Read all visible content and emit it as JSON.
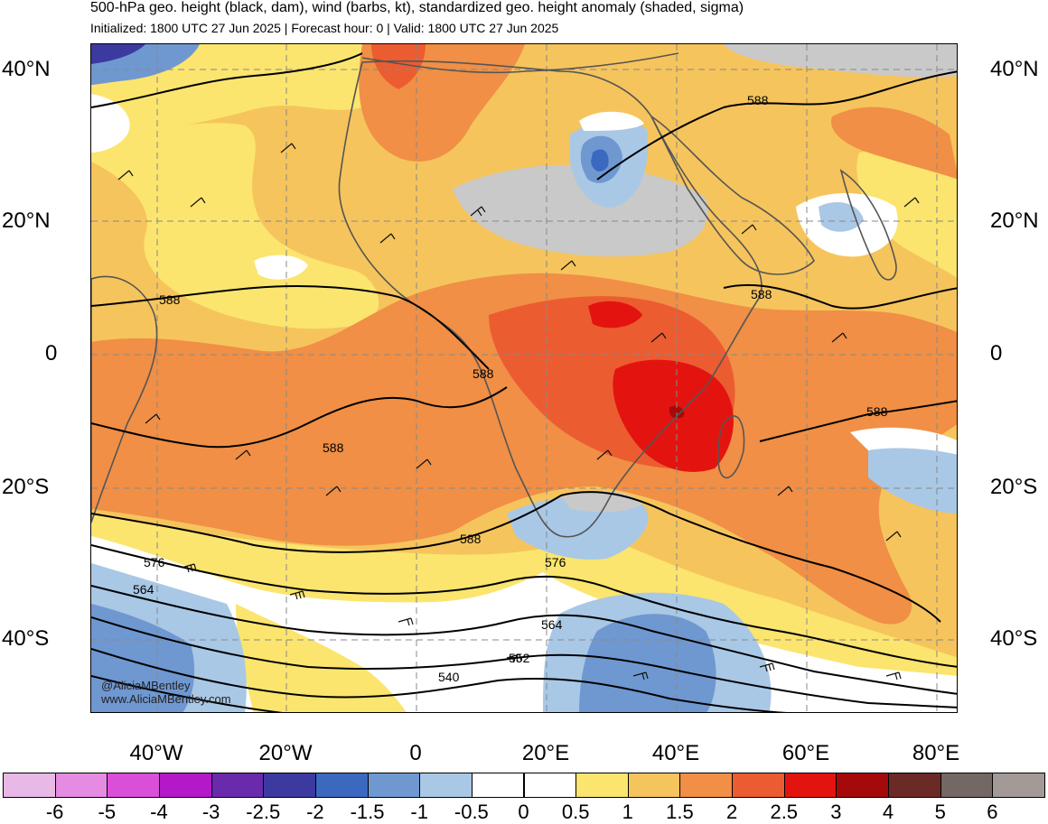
{
  "title": "500-hPa geo. height (black, dam), wind (barbs, kt), standardized geo. height anomaly (shaded, sigma)",
  "subtitle": "Initialized: 1800 UTC 27 Jun 2025 | Forecast hour: 0 | Valid: 1800 UTC 27 Jun 2025",
  "lat_labels": [
    "40°N",
    "20°N",
    "0",
    "20°S",
    "40°S"
  ],
  "lon_labels": [
    "40°W",
    "20°W",
    "0",
    "20°E",
    "40°E",
    "60°E",
    "80°E"
  ],
  "contour_labels": [
    "588",
    "588",
    "588",
    "588",
    "588",
    "588",
    "588",
    "576",
    "576",
    "564",
    "564",
    "552",
    "540"
  ],
  "credits": [
    "@AliciaMBentley",
    "www.AliciaMBentley.com"
  ],
  "colorbar": {
    "labels": [
      "-6",
      "-5",
      "-4",
      "-3",
      "-2.5",
      "-2",
      "-1.5",
      "-1",
      "-0.5",
      "0",
      "0.5",
      "1",
      "1.5",
      "2",
      "2.5",
      "3",
      "4",
      "5",
      "6"
    ],
    "colors": [
      "#e8b8e6",
      "#e58be1",
      "#da4fd9",
      "#b418c8",
      "#6a2aac",
      "#3c3aa0",
      "#3b69c0",
      "#6f98d1",
      "#a9c8e6",
      "#ffffff",
      "#ffffff",
      "#fbe56e",
      "#f6c45c",
      "#f08f45",
      "#ec5c31",
      "#e3140f",
      "#a50a0a",
      "#6c2a26",
      "#736863",
      "#a39a98"
    ]
  },
  "map": {
    "lat_range": [
      -49,
      46
    ],
    "lon_range": [
      -50,
      82
    ],
    "gridline_lats": [
      40,
      20,
      0,
      -20,
      -40
    ],
    "gridline_lons": [
      -40,
      -20,
      0,
      20,
      40,
      60,
      80
    ],
    "anomaly_regions": [
      {
        "sigma_band": "1 to 1.5",
        "color": "#fbe56e"
      },
      {
        "sigma_band": "1.5 to 2",
        "color": "#f6c45c"
      },
      {
        "sigma_band": "2 to 2.5",
        "color": "#f08f45"
      },
      {
        "sigma_band": "2.5 to 3",
        "color": "#ec5c31"
      },
      {
        "sigma_band": "3 to 4",
        "color": "#e3140f"
      },
      {
        "sigma_band": "-1 to -0.5",
        "color": "#a9c8e6"
      },
      {
        "sigma_band": "-1.5 to -1",
        "color": "#6f98d1"
      },
      {
        "sigma_band": "5 to 6",
        "color": "#a39a98"
      }
    ]
  }
}
